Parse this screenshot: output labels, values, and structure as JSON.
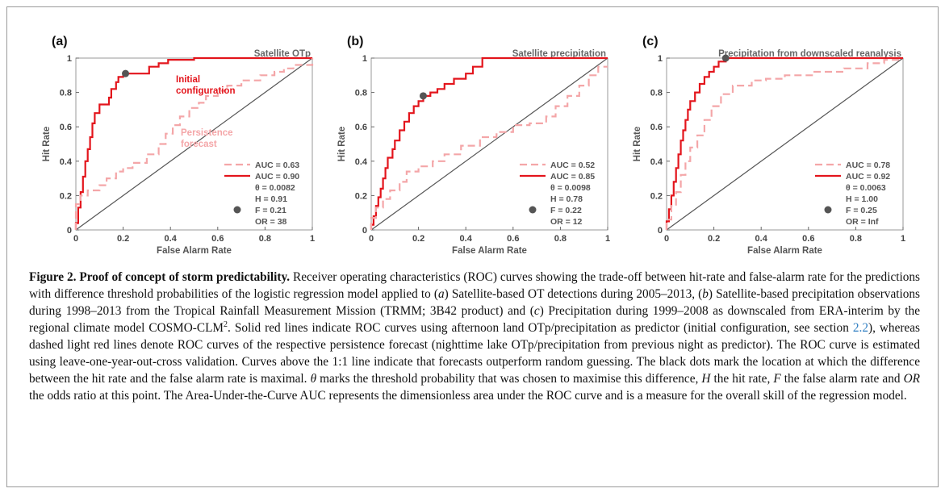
{
  "figure": {
    "colors": {
      "solid": "#e3151c",
      "dashed": "#f4a6a8",
      "diagonal": "#555555",
      "dot": "#555555",
      "axis": "#444444"
    },
    "axis": {
      "xlabel": "False Alarm Rate",
      "ylabel": "Hit Rate",
      "xticks": [
        "0",
        "0.2",
        "0.4",
        "0.6",
        "0.8",
        "1"
      ],
      "yticks": [
        "0",
        "0.2",
        "0.4",
        "0.6",
        "0.8",
        "1"
      ]
    },
    "panels": [
      {
        "letter": "(a)",
        "title": "Satellite OTp",
        "annotations": [
          "Initial",
          "configuration",
          "Persistence",
          "forecast"
        ],
        "legend": [
          "AUC = 0.63",
          "AUC = 0.90",
          "θ = 0.0082",
          "H = 0.91",
          "F = 0.21",
          "OR = 38"
        ]
      },
      {
        "letter": "(b)",
        "title": "Satellite precipitation",
        "annotations": [],
        "legend": [
          "AUC = 0.52",
          "AUC = 0.85",
          "θ = 0.0098",
          "H = 0.78",
          "F = 0.22",
          "OR = 12"
        ]
      },
      {
        "letter": "(c)",
        "title": "Precipitation from downscaled reanalysis",
        "annotations": [],
        "legend": [
          "AUC = 0.78",
          "AUC = 0.92",
          "θ = 0.0063",
          "H = 1.00",
          "F = 0.25",
          "OR = Inf"
        ]
      }
    ]
  },
  "chart_data": [
    {
      "type": "line",
      "xlim": [
        0,
        1
      ],
      "ylim": [
        0,
        1
      ],
      "series": [
        {
          "style": "solid",
          "x": [
            0,
            0,
            0.01,
            0.01,
            0.02,
            0.02,
            0.03,
            0.03,
            0.04,
            0.04,
            0.05,
            0.05,
            0.06,
            0.06,
            0.07,
            0.07,
            0.08,
            0.08,
            0.1,
            0.1,
            0.14,
            0.14,
            0.15,
            0.15,
            0.17,
            0.17,
            0.18,
            0.18,
            0.2,
            0.2,
            0.21,
            0.21,
            0.31,
            0.31,
            0.35,
            0.35,
            0.39,
            0.39,
            0.5,
            0.5,
            1.0
          ],
          "y": [
            0,
            0.04,
            0.04,
            0.13,
            0.13,
            0.22,
            0.22,
            0.31,
            0.31,
            0.4,
            0.4,
            0.47,
            0.47,
            0.54,
            0.54,
            0.62,
            0.62,
            0.68,
            0.68,
            0.73,
            0.73,
            0.77,
            0.77,
            0.82,
            0.82,
            0.86,
            0.86,
            0.89,
            0.89,
            0.91,
            0.91,
            0.91,
            0.91,
            0.95,
            0.95,
            0.97,
            0.97,
            0.99,
            0.99,
            1.0,
            1.0
          ]
        },
        {
          "style": "dashed",
          "x": [
            0,
            0,
            0.02,
            0.02,
            0.05,
            0.05,
            0.1,
            0.1,
            0.13,
            0.13,
            0.17,
            0.17,
            0.2,
            0.2,
            0.24,
            0.24,
            0.3,
            0.3,
            0.35,
            0.35,
            0.38,
            0.38,
            0.41,
            0.41,
            0.44,
            0.44,
            0.48,
            0.48,
            0.52,
            0.52,
            0.55,
            0.55,
            0.6,
            0.6,
            0.64,
            0.64,
            0.7,
            0.7,
            0.78,
            0.78,
            0.84,
            0.84,
            0.88,
            0.88,
            0.92,
            0.92,
            1.0,
            1.0
          ],
          "y": [
            0,
            0.15,
            0.15,
            0.2,
            0.2,
            0.23,
            0.23,
            0.26,
            0.26,
            0.3,
            0.3,
            0.34,
            0.34,
            0.36,
            0.36,
            0.39,
            0.39,
            0.44,
            0.44,
            0.5,
            0.5,
            0.56,
            0.56,
            0.61,
            0.61,
            0.66,
            0.66,
            0.71,
            0.71,
            0.74,
            0.74,
            0.78,
            0.78,
            0.81,
            0.81,
            0.84,
            0.84,
            0.87,
            0.87,
            0.9,
            0.9,
            0.92,
            0.92,
            0.94,
            0.94,
            0.96,
            0.96,
            1.0
          ]
        },
        {
          "style": "point",
          "x": [
            0.21
          ],
          "y": [
            0.91
          ]
        }
      ]
    },
    {
      "type": "line",
      "xlim": [
        0,
        1
      ],
      "ylim": [
        0,
        1
      ],
      "series": [
        {
          "style": "solid",
          "x": [
            0,
            0,
            0.01,
            0.01,
            0.02,
            0.02,
            0.03,
            0.03,
            0.04,
            0.04,
            0.05,
            0.05,
            0.06,
            0.06,
            0.07,
            0.07,
            0.09,
            0.09,
            0.1,
            0.1,
            0.12,
            0.12,
            0.14,
            0.14,
            0.16,
            0.16,
            0.18,
            0.18,
            0.2,
            0.2,
            0.22,
            0.22,
            0.25,
            0.25,
            0.28,
            0.28,
            0.31,
            0.31,
            0.35,
            0.35,
            0.4,
            0.4,
            0.43,
            0.43,
            0.47,
            0.47,
            1.0
          ],
          "y": [
            0,
            0.03,
            0.03,
            0.08,
            0.08,
            0.14,
            0.14,
            0.19,
            0.19,
            0.24,
            0.24,
            0.3,
            0.3,
            0.36,
            0.36,
            0.42,
            0.42,
            0.47,
            0.47,
            0.52,
            0.52,
            0.58,
            0.58,
            0.63,
            0.63,
            0.68,
            0.68,
            0.72,
            0.72,
            0.75,
            0.75,
            0.78,
            0.78,
            0.8,
            0.8,
            0.82,
            0.82,
            0.85,
            0.85,
            0.88,
            0.88,
            0.91,
            0.91,
            0.95,
            0.95,
            1.0,
            1.0
          ]
        },
        {
          "style": "dashed",
          "x": [
            0,
            0,
            0.02,
            0.02,
            0.05,
            0.05,
            0.08,
            0.08,
            0.12,
            0.12,
            0.15,
            0.15,
            0.2,
            0.2,
            0.26,
            0.26,
            0.31,
            0.31,
            0.38,
            0.38,
            0.46,
            0.46,
            0.53,
            0.53,
            0.6,
            0.6,
            0.67,
            0.67,
            0.74,
            0.74,
            0.78,
            0.78,
            0.83,
            0.83,
            0.88,
            0.88,
            0.92,
            0.92,
            0.96,
            0.96,
            1.0
          ],
          "y": [
            0,
            0.07,
            0.07,
            0.13,
            0.13,
            0.18,
            0.18,
            0.23,
            0.23,
            0.28,
            0.28,
            0.34,
            0.34,
            0.37,
            0.37,
            0.4,
            0.4,
            0.44,
            0.44,
            0.49,
            0.49,
            0.54,
            0.54,
            0.57,
            0.57,
            0.61,
            0.61,
            0.62,
            0.62,
            0.66,
            0.66,
            0.72,
            0.72,
            0.78,
            0.78,
            0.84,
            0.84,
            0.9,
            0.9,
            0.95,
            0.95
          ]
        },
        {
          "style": "point",
          "x": [
            0.22
          ],
          "y": [
            0.78
          ]
        }
      ]
    },
    {
      "type": "line",
      "xlim": [
        0,
        1
      ],
      "ylim": [
        0,
        1
      ],
      "series": [
        {
          "style": "solid",
          "x": [
            0,
            0,
            0.01,
            0.01,
            0.02,
            0.02,
            0.03,
            0.03,
            0.04,
            0.04,
            0.05,
            0.05,
            0.06,
            0.06,
            0.07,
            0.07,
            0.08,
            0.08,
            0.09,
            0.09,
            0.1,
            0.1,
            0.12,
            0.12,
            0.14,
            0.14,
            0.16,
            0.16,
            0.18,
            0.18,
            0.2,
            0.2,
            0.22,
            0.22,
            0.25,
            0.25,
            1.0
          ],
          "y": [
            0,
            0.05,
            0.05,
            0.12,
            0.12,
            0.2,
            0.2,
            0.28,
            0.28,
            0.36,
            0.36,
            0.44,
            0.44,
            0.52,
            0.52,
            0.58,
            0.58,
            0.64,
            0.64,
            0.7,
            0.7,
            0.75,
            0.75,
            0.8,
            0.8,
            0.85,
            0.85,
            0.89,
            0.89,
            0.92,
            0.92,
            0.95,
            0.95,
            0.98,
            0.98,
            1.0,
            1.0
          ]
        },
        {
          "style": "dashed",
          "x": [
            0,
            0,
            0.02,
            0.02,
            0.04,
            0.04,
            0.06,
            0.06,
            0.08,
            0.08,
            0.1,
            0.1,
            0.13,
            0.13,
            0.16,
            0.16,
            0.19,
            0.19,
            0.23,
            0.23,
            0.28,
            0.28,
            0.36,
            0.36,
            0.42,
            0.42,
            0.5,
            0.5,
            0.62,
            0.62,
            0.75,
            0.75,
            0.85,
            0.85,
            0.92,
            0.92,
            1.0
          ],
          "y": [
            0,
            0.06,
            0.06,
            0.14,
            0.14,
            0.22,
            0.22,
            0.32,
            0.32,
            0.4,
            0.4,
            0.48,
            0.48,
            0.55,
            0.55,
            0.64,
            0.64,
            0.72,
            0.72,
            0.79,
            0.79,
            0.84,
            0.84,
            0.87,
            0.87,
            0.88,
            0.88,
            0.9,
            0.9,
            0.92,
            0.92,
            0.94,
            0.94,
            0.97,
            0.97,
            0.99,
            0.99
          ]
        },
        {
          "style": "point",
          "x": [
            0.25
          ],
          "y": [
            1.0
          ]
        }
      ]
    }
  ],
  "caption": {
    "label": "Figure 2.",
    "title": "Proof of concept of storm predictability.",
    "p1": "Receiver operating characteristics (ROC) curves showing the trade-off between hit-rate and false-alarm rate for the predictions with difference threshold probabilities of the logistic regression model applied to (",
    "ia": "a",
    "p2": ") Satellite-based OT detections during 2005–2013, (",
    "ib": "b",
    "p3": ") Satellite-based precipitation observations during 1998–2013 from the Tropical Rainfall Measurement Mission (TRMM; 3B42 product) and (",
    "ic": "c",
    "p4": ") Precipitation during 1999–2008 as downscaled from ERA-interim by the regional climate model COSMO-CLM",
    "sup": "2",
    "p5": ". Solid red lines indicate ROC curves using afternoon land OTp/precipitation as predictor (initial configuration, see section ",
    "link": "2.2",
    "p6": "), whereas dashed light red lines denote ROC curves of the respective persistence forecast (nighttime lake OTp/precipitation from previous night as predictor). The ROC curve is estimated using leave-one-year-out-cross validation. Curves above the 1:1 line indicate that forecasts outperform random guessing. The black dots mark the location at which the difference between the hit rate and the false alarm rate is maximal. ",
    "theta": "θ",
    "p7": " marks the threshold probability that was chosen to maximise this difference, ",
    "H": "H",
    "p8": " the hit rate, ",
    "F": "F",
    "p9": " the false alarm rate and ",
    "OR": "OR",
    "p10": " the odds ratio at this point. The Area-Under-the-Curve AUC represents the dimensionless area under the ROC curve and is a measure for the overall skill of the regression model."
  }
}
